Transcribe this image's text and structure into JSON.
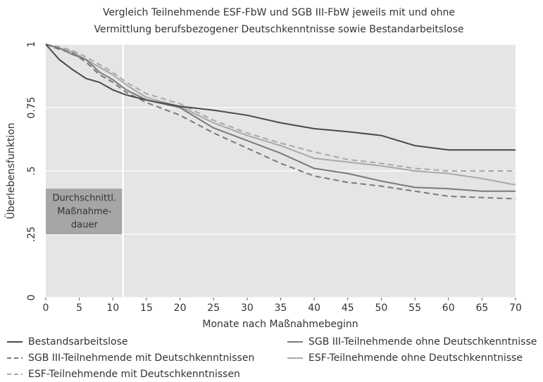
{
  "chart_data": {
    "type": "line",
    "title": [
      "Vergleich Teilnehmende ESF-FbW und SGB III-FbW jeweils mit und ohne",
      "Vermittlung berufsbezogener Deutschkenntnisse sowie Bestandarbeitslose"
    ],
    "xlabel": "Monate nach Maßnahmebeginn",
    "ylabel": "Überlebensfunktion",
    "x": [
      0,
      2,
      4,
      6,
      8,
      10,
      12,
      15,
      20,
      25,
      30,
      35,
      40,
      45,
      50,
      55,
      60,
      65,
      70
    ],
    "series": [
      {
        "name": "Bestandsarbeitslose",
        "color": "#4a4a4a",
        "dashed": false,
        "values": [
          1,
          0.94,
          0.9,
          0.865,
          0.85,
          0.82,
          0.8,
          0.78,
          0.755,
          0.74,
          0.72,
          0.69,
          0.667,
          0.655,
          0.64,
          0.6,
          0.583,
          0.583,
          0.583
        ]
      },
      {
        "name": "SGB III-Teilnehmende ohne Deutschkenntnisse",
        "color": "#7a7a7a",
        "dashed": false,
        "values": [
          1,
          0.985,
          0.96,
          0.94,
          0.89,
          0.86,
          0.82,
          0.78,
          0.75,
          0.67,
          0.62,
          0.57,
          0.51,
          0.49,
          0.46,
          0.435,
          0.43,
          0.42,
          0.42
        ]
      },
      {
        "name": "SGB III-Teilnehmende mit Deutschkenntnissen",
        "color": "#7a7a7a",
        "dashed": true,
        "values": [
          1,
          0.98,
          0.965,
          0.93,
          0.88,
          0.85,
          0.81,
          0.77,
          0.72,
          0.65,
          0.59,
          0.53,
          0.48,
          0.455,
          0.44,
          0.42,
          0.4,
          0.395,
          0.39
        ]
      },
      {
        "name": "ESF-Teilnehmende ohne Deutschkenntnisse",
        "color": "#a8a8a8",
        "dashed": false,
        "values": [
          1,
          0.985,
          0.97,
          0.94,
          0.91,
          0.88,
          0.84,
          0.79,
          0.755,
          0.69,
          0.64,
          0.6,
          0.55,
          0.535,
          0.52,
          0.5,
          0.49,
          0.47,
          0.445
        ]
      },
      {
        "name": "ESF-Teilnehmende mit Deutschkenntnissen",
        "color": "#a8a8a8",
        "dashed": true,
        "values": [
          1,
          0.99,
          0.975,
          0.95,
          0.92,
          0.89,
          0.85,
          0.805,
          0.765,
          0.7,
          0.65,
          0.61,
          0.575,
          0.545,
          0.53,
          0.51,
          0.5,
          0.5,
          0.5
        ]
      }
    ],
    "xlim": [
      0,
      70
    ],
    "xticks": [
      0,
      5,
      10,
      15,
      20,
      25,
      30,
      35,
      40,
      45,
      50,
      55,
      60,
      65,
      70
    ],
    "ylim": [
      0,
      1
    ],
    "yticks": [
      0,
      {
        "value": 0.25,
        "label": ".25"
      },
      {
        "value": 0.5,
        "label": ".5"
      },
      0.75,
      1
    ],
    "grid": true,
    "annotation": {
      "x": 11.5,
      "text": [
        "Durchschnittl.",
        "Maßnahme-",
        "dauer"
      ]
    }
  }
}
